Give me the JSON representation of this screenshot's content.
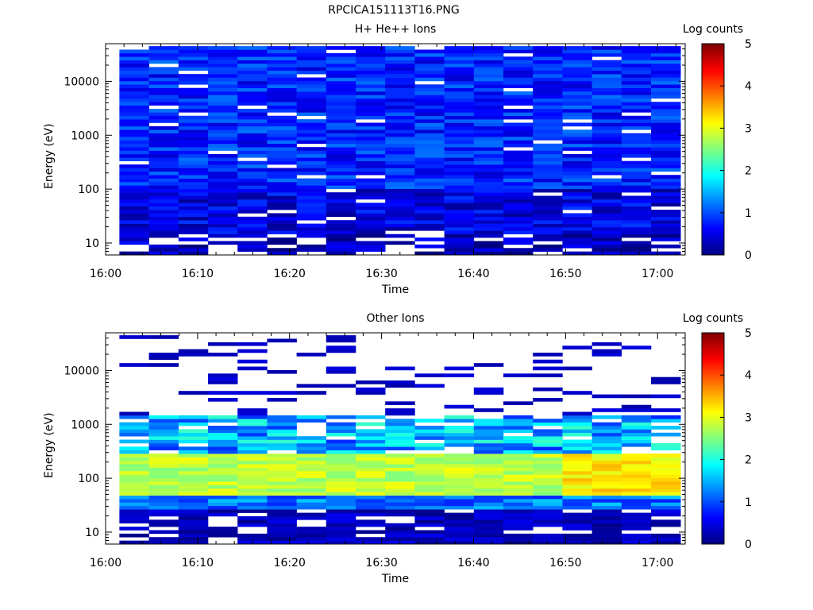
{
  "page_title": "RPCICA151113T16.PNG",
  "panels": [
    {
      "title": "H+ He++ Ions",
      "colorbar_label": "Log counts",
      "xlabel": "Time",
      "ylabel": "Energy (eV)"
    },
    {
      "title": "Other Ions",
      "colorbar_label": "Log counts",
      "xlabel": "Time",
      "ylabel": "Energy (eV)"
    }
  ],
  "chart_data": [
    {
      "type": "heatmap",
      "title": "H+ He++ Ions",
      "xlabel": "Time",
      "ylabel": "Energy (eV)",
      "x_ticks": [
        "16:00",
        "16:10",
        "16:20",
        "16:30",
        "16:40",
        "16:50",
        "17:00"
      ],
      "y_ticks": [
        "10",
        "100",
        "1000",
        "10000"
      ],
      "y_scale": "log",
      "ylim": [
        6,
        50000
      ],
      "xlim": [
        "16:00",
        "17:03"
      ],
      "colorbar": {
        "label": "Log counts",
        "range": [
          0,
          5
        ],
        "ticks": [
          "0",
          "1",
          "2",
          "3",
          "4",
          "5"
        ],
        "colormap": "jet"
      },
      "summary_by_energy_band": [
        {
          "energy_range": [
            6,
            15
          ],
          "log_counts_typical": 0.3
        },
        {
          "energy_range": [
            15,
            100
          ],
          "log_counts_typical": 0.5
        },
        {
          "energy_range": [
            100,
            45000
          ],
          "log_counts_typical": 0.8
        }
      ]
    },
    {
      "type": "heatmap",
      "title": "Other Ions",
      "xlabel": "Time",
      "ylabel": "Energy (eV)",
      "x_ticks": [
        "16:00",
        "16:10",
        "16:20",
        "16:30",
        "16:40",
        "16:50",
        "17:00"
      ],
      "y_ticks": [
        "10",
        "100",
        "1000",
        "10000"
      ],
      "y_scale": "log",
      "ylim": [
        6,
        50000
      ],
      "xlim": [
        "16:00",
        "17:03"
      ],
      "colorbar": {
        "label": "Log counts",
        "range": [
          0,
          5
        ],
        "ticks": [
          "0",
          "1",
          "2",
          "3",
          "4",
          "5"
        ],
        "colormap": "jet"
      },
      "summary_by_energy_band": [
        {
          "energy_range": [
            6,
            25
          ],
          "log_counts_typical": 0.3
        },
        {
          "energy_range": [
            25,
            45
          ],
          "log_counts_typical": 1.2
        },
        {
          "energy_range": [
            45,
            300
          ],
          "log_counts_typical": 2.8
        },
        {
          "energy_range": [
            300,
            1400
          ],
          "log_counts_typical": 1.5
        },
        {
          "energy_range": [
            1400,
            40000
          ],
          "log_counts_typical": 0.3
        }
      ]
    }
  ]
}
